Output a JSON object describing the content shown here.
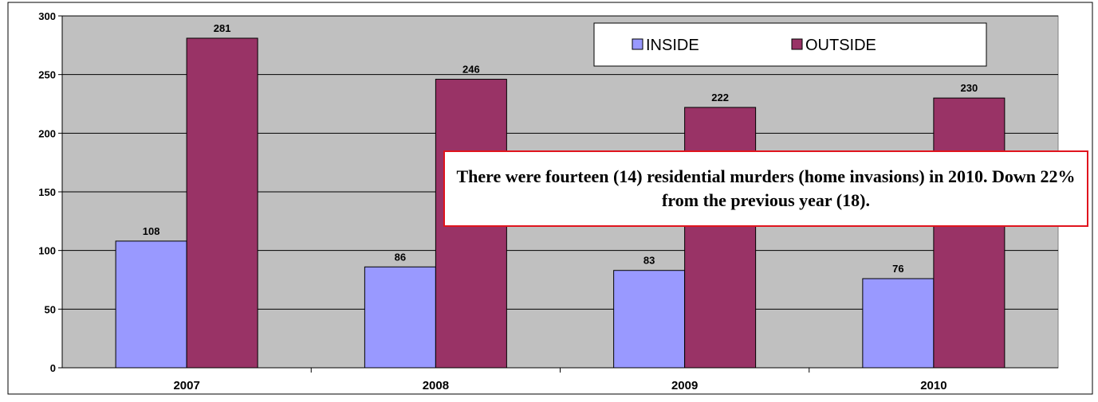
{
  "chart_data": {
    "type": "bar",
    "categories": [
      "2007",
      "2008",
      "2009",
      "2010"
    ],
    "series": [
      {
        "name": "INSIDE",
        "values": [
          108,
          86,
          83,
          76
        ]
      },
      {
        "name": "OUTSIDE",
        "values": [
          281,
          246,
          222,
          230
        ]
      }
    ],
    "ylim": [
      0,
      300
    ],
    "yticks": [
      0,
      50,
      100,
      150,
      200,
      250,
      300
    ],
    "grid": true,
    "legend_position": "top-right",
    "annotation": "There were fourteen (14) residential murders (home invasions) in 2010. Down 22% from the previous year (18)."
  },
  "colors": {
    "INSIDE": "#9999ff",
    "OUTSIDE": "#993366",
    "plot_background": "#c0c0c0",
    "callout_border": "#e0141e"
  }
}
